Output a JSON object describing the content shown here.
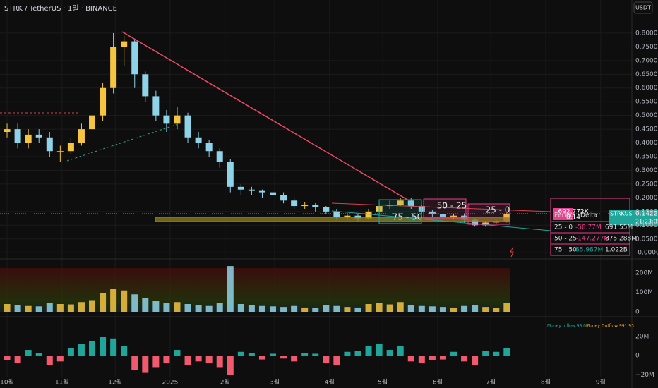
{
  "chart_data": {
    "type": "candlestick",
    "title": "STRK / TetherUS · 1일 · BINANCE",
    "currency_button": "USDT",
    "up_color": "#f5c542",
    "down_color": "#8fd3e8",
    "grid": true,
    "x": [
      0,
      6,
      12,
      18,
      24,
      30,
      36,
      42,
      48,
      54,
      60,
      66,
      72,
      78,
      84,
      90,
      96,
      102,
      108,
      114,
      120,
      126,
      132,
      138,
      144,
      150,
      156,
      162,
      168,
      174,
      180,
      186,
      192,
      198,
      204,
      210,
      216,
      222,
      228,
      234,
      240,
      246,
      252,
      258,
      264,
      270,
      276,
      282
    ],
    "open": [
      0.44,
      0.45,
      0.4,
      0.43,
      0.42,
      0.37,
      0.37,
      0.4,
      0.45,
      0.5,
      0.6,
      0.75,
      0.77,
      0.65,
      0.57,
      0.5,
      0.47,
      0.5,
      0.42,
      0.4,
      0.37,
      0.33,
      0.24,
      0.23,
      0.225,
      0.22,
      0.21,
      0.19,
      0.17,
      0.175,
      0.165,
      0.15,
      0.13,
      0.135,
      0.125,
      0.15,
      0.17,
      0.175,
      0.19,
      0.17,
      0.15,
      0.14,
      0.13,
      0.135,
      0.12,
      0.1,
      0.11,
      0.115
    ],
    "high": [
      0.47,
      0.47,
      0.45,
      0.45,
      0.44,
      0.39,
      0.42,
      0.47,
      0.52,
      0.62,
      0.8,
      0.79,
      0.78,
      0.66,
      0.59,
      0.52,
      0.53,
      0.51,
      0.44,
      0.41,
      0.38,
      0.34,
      0.25,
      0.24,
      0.23,
      0.23,
      0.22,
      0.2,
      0.185,
      0.18,
      0.17,
      0.16,
      0.14,
      0.14,
      0.16,
      0.18,
      0.19,
      0.2,
      0.2,
      0.175,
      0.155,
      0.145,
      0.14,
      0.14,
      0.125,
      0.115,
      0.12,
      0.145
    ],
    "low": [
      0.42,
      0.38,
      0.38,
      0.4,
      0.35,
      0.33,
      0.36,
      0.39,
      0.44,
      0.48,
      0.58,
      0.68,
      0.6,
      0.55,
      0.48,
      0.44,
      0.45,
      0.4,
      0.38,
      0.35,
      0.31,
      0.22,
      0.21,
      0.21,
      0.2,
      0.19,
      0.18,
      0.16,
      0.16,
      0.15,
      0.14,
      0.12,
      0.12,
      0.115,
      0.12,
      0.14,
      0.16,
      0.17,
      0.16,
      0.14,
      0.13,
      0.125,
      0.12,
      0.11,
      0.095,
      0.095,
      0.105,
      0.11
    ],
    "close": [
      0.45,
      0.4,
      0.43,
      0.42,
      0.37,
      0.37,
      0.4,
      0.45,
      0.5,
      0.6,
      0.75,
      0.77,
      0.65,
      0.57,
      0.5,
      0.47,
      0.5,
      0.42,
      0.4,
      0.37,
      0.33,
      0.24,
      0.23,
      0.225,
      0.22,
      0.21,
      0.19,
      0.17,
      0.175,
      0.165,
      0.15,
      0.13,
      0.135,
      0.125,
      0.15,
      0.17,
      0.175,
      0.19,
      0.17,
      0.15,
      0.14,
      0.13,
      0.135,
      0.12,
      0.1,
      0.11,
      0.115,
      0.14
    ],
    "xlim": [
      -4,
      352.6
    ],
    "xticks": [
      {
        "value": 0,
        "label": "10월"
      },
      {
        "value": 31,
        "label": "11월"
      },
      {
        "value": 61,
        "label": "12월"
      },
      {
        "value": 92,
        "label": "2025"
      },
      {
        "value": 123,
        "label": "2월"
      },
      {
        "value": 151,
        "label": "3월"
      },
      {
        "value": 182,
        "label": "4월"
      },
      {
        "value": 212,
        "label": "5월"
      },
      {
        "value": 243,
        "label": "6월"
      },
      {
        "value": 273,
        "label": "7월"
      },
      {
        "value": 304,
        "label": "8월"
      },
      {
        "value": 335,
        "label": "9월"
      }
    ],
    "ylim": [
      -0.02,
      0.9
    ],
    "yticks": [
      {
        "value": 0.8,
        "label": "0.8000"
      },
      {
        "value": 0.75,
        "label": "0.7500"
      },
      {
        "value": 0.7,
        "label": "0.7000"
      },
      {
        "value": 0.65,
        "label": "0.6500"
      },
      {
        "value": 0.6,
        "label": "0.6000"
      },
      {
        "value": 0.55,
        "label": "0.5500"
      },
      {
        "value": 0.5,
        "label": "0.5000"
      },
      {
        "value": 0.45,
        "label": "0.4500"
      },
      {
        "value": 0.4,
        "label": "0.4000"
      },
      {
        "value": 0.35,
        "label": "0.3500"
      },
      {
        "value": 0.3,
        "label": "0.3000"
      },
      {
        "value": 0.25,
        "label": "0.2500"
      },
      {
        "value": 0.2,
        "label": "0.2000"
      },
      {
        "value": 0.15,
        "label": "0.1500"
      },
      {
        "value": 0.1,
        "label": "0.1000"
      },
      {
        "value": 0.05,
        "label": "0.0500"
      },
      {
        "value": 0,
        "label": "-0.0000"
      }
    ],
    "last_price": {
      "symbol": "STRKUSDT",
      "price": 0.1422,
      "price_label": "0.1422",
      "countdown": "21:23:05"
    },
    "range_boxes": [
      "75 - 50",
      "50 - 25",
      "25 - 0"
    ],
    "overlay_texts": [
      "692.772K",
      "0.14"
    ],
    "delta_table": {
      "header": [
        "Period",
        "Delta"
      ],
      "rows": [
        [
          "25 - 0",
          "-58.77M",
          "691.55M"
        ],
        [
          "50 - 25",
          "-147.277M",
          "875.288M"
        ],
        [
          "75 - 50",
          "85.987M",
          "1.022B"
        ]
      ]
    },
    "volume": {
      "values": [
        40,
        35,
        30,
        28,
        45,
        40,
        38,
        50,
        60,
        95,
        120,
        110,
        90,
        70,
        55,
        45,
        50,
        40,
        35,
        30,
        45,
        236,
        40,
        35,
        30,
        28,
        25,
        30,
        22,
        20,
        35,
        30,
        25,
        22,
        40,
        45,
        38,
        50,
        35,
        30,
        28,
        25,
        22,
        30,
        35,
        25,
        20,
        45
      ],
      "ylim": [
        0,
        240
      ],
      "yticks": [
        {
          "value": 200,
          "label": "200M"
        },
        {
          "value": 100,
          "label": "100M"
        },
        0
      ]
    },
    "money_flow": {
      "inflow_label": "Money Inflow 98.07",
      "outflow_label": "Money Outflow 991.93",
      "pos_color": "#1fa59a",
      "neg_color": "#f05a6e",
      "values": [
        -5,
        -8,
        6,
        3,
        -10,
        -6,
        8,
        12,
        15,
        20,
        18,
        10,
        -15,
        -18,
        -12,
        -8,
        6,
        -10,
        -6,
        -8,
        -12,
        -20,
        4,
        3,
        -4,
        2,
        -3,
        -6,
        3,
        2,
        -8,
        -10,
        4,
        5,
        10,
        12,
        6,
        10,
        -6,
        -8,
        -5,
        -4,
        4,
        -6,
        -10,
        5,
        4,
        8
      ],
      "ylim": [
        -22,
        38.5
      ],
      "yticks": [
        {
          "value": 20,
          "label": "20M"
        },
        0,
        {
          "value": -20,
          "label": "−20M"
        }
      ]
    }
  }
}
